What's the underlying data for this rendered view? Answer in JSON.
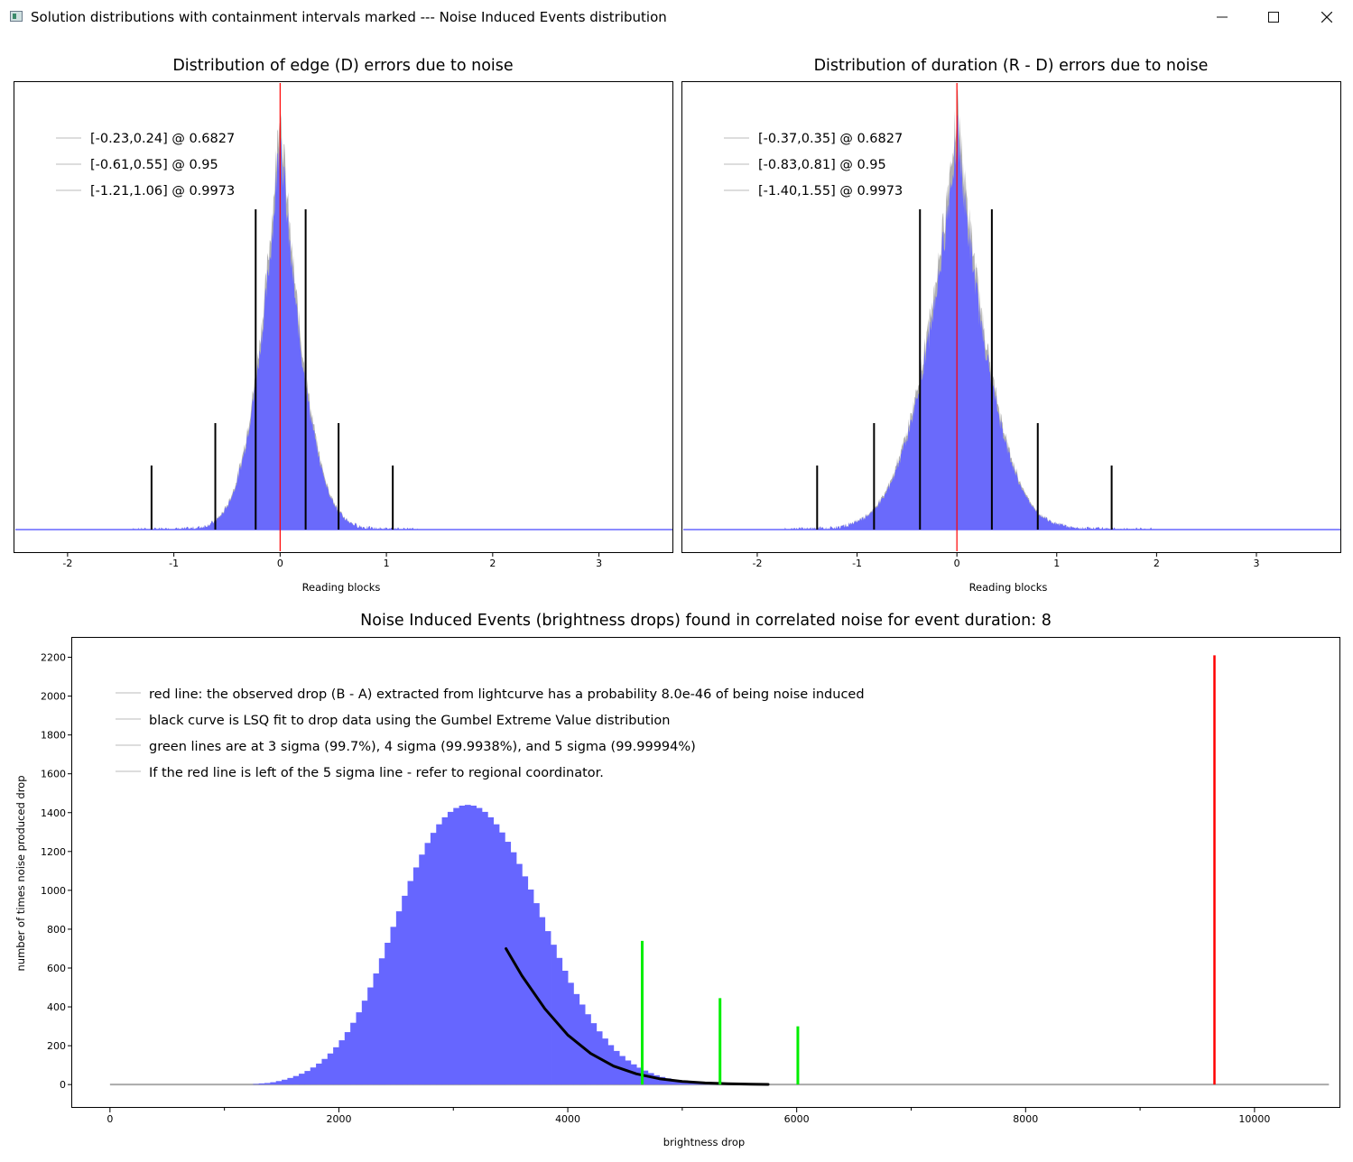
{
  "window": {
    "title": "Solution distributions with containment intervals marked --- Noise Induced Events distribution",
    "icon": "app-window-icon",
    "controls": [
      "minimize-icon",
      "maximize-icon",
      "close-icon"
    ]
  },
  "chart_data": [
    {
      "type": "histogram",
      "title": "Distribution of edge (D) errors due to noise",
      "xlabel": "Reading blocks",
      "ylabel": "",
      "xlim": [
        -2.5,
        3.7
      ],
      "xticks": [
        "-2",
        "-1",
        "0",
        "1",
        "2",
        "3"
      ],
      "bar_color": "#6666ff",
      "center_line": {
        "x": 0,
        "color": "#ff0000"
      },
      "distribution": {
        "center": 0.0,
        "sigma_left": 0.23,
        "sigma_right": 0.24,
        "support": [
          -1.4,
          1.3
        ]
      },
      "interval_lines": [
        {
          "x": -1.21,
          "level": 0.9973
        },
        {
          "x": -0.61,
          "level": 0.95
        },
        {
          "x": -0.23,
          "level": 0.6827
        },
        {
          "x": 0.24,
          "level": 0.6827
        },
        {
          "x": 0.55,
          "level": 0.95
        },
        {
          "x": 1.06,
          "level": 0.9973
        }
      ],
      "legend": [
        "[-0.23,0.24] @ 0.6827",
        "[-0.61,0.55] @ 0.95",
        "[-1.21,1.06] @ 0.9973"
      ],
      "legend_position": "top-left"
    },
    {
      "type": "histogram",
      "title": "Distribution of duration (R - D) errors due to noise",
      "xlabel": "Reading blocks",
      "ylabel": "",
      "xlim": [
        -2.75,
        3.85
      ],
      "xticks": [
        "-2",
        "-1",
        "0",
        "1",
        "2",
        "3"
      ],
      "bar_color": "#6666ff",
      "center_line": {
        "x": 0,
        "color": "#ff0000"
      },
      "distribution": {
        "center": 0.0,
        "sigma_left": 0.37,
        "sigma_right": 0.35,
        "support": [
          -1.75,
          2.0
        ]
      },
      "interval_lines": [
        {
          "x": -1.4,
          "level": 0.9973
        },
        {
          "x": -0.83,
          "level": 0.95
        },
        {
          "x": -0.37,
          "level": 0.6827
        },
        {
          "x": 0.35,
          "level": 0.6827
        },
        {
          "x": 0.81,
          "level": 0.95
        },
        {
          "x": 1.55,
          "level": 0.9973
        }
      ],
      "legend": [
        "[-0.37,0.35] @ 0.6827",
        "[-0.83,0.81] @ 0.95",
        "[-1.40,1.55] @ 0.9973"
      ],
      "legend_position": "top-left"
    },
    {
      "type": "histogram",
      "title": "Noise Induced Events (brightness drops) found in correlated noise for event duration: 8",
      "xlabel": "brightness drop",
      "ylabel": "number of times noise produced drop",
      "xlim": [
        -330,
        10750
      ],
      "ylim": [
        -120,
        2300
      ],
      "xticks": [
        "0",
        "2000",
        "4000",
        "6000",
        "8000",
        "10000"
      ],
      "yticks": [
        "0",
        "200",
        "400",
        "600",
        "800",
        "1000",
        "1200",
        "1400",
        "1600",
        "1800",
        "2000",
        "2200"
      ],
      "bar_color": "#6666ff",
      "bins": {
        "start": 1250,
        "width": 50,
        "counts": [
          3,
          6,
          8,
          12,
          18,
          25,
          34,
          44,
          56,
          70,
          88,
          108,
          132,
          160,
          192,
          228,
          270,
          318,
          372,
          432,
          500,
          572,
          650,
          730,
          812,
          892,
          972,
          1048,
          1118,
          1184,
          1244,
          1296,
          1340,
          1376,
          1404,
          1424,
          1436,
          1440,
          1436,
          1424,
          1404,
          1376,
          1340,
          1298,
          1250,
          1196,
          1136,
          1072,
          1004,
          934,
          862,
          790,
          720,
          652,
          586,
          524,
          466,
          412,
          362,
          316,
          274,
          237,
          203,
          173,
          147,
          124,
          104,
          87,
          72,
          59,
          48,
          39,
          32,
          26,
          21,
          17,
          13,
          10,
          8,
          6,
          5,
          4,
          3,
          2,
          2,
          1,
          1,
          1,
          1
        ]
      },
      "fit_curve": {
        "label": "Gumbel Extreme Value LSQ fit",
        "color": "#000000",
        "x": [
          3460,
          3600,
          3800,
          4000,
          4200,
          4400,
          4600,
          4800,
          5000,
          5200,
          5400,
          5600,
          5750
        ],
        "y": [
          700,
          560,
          390,
          255,
          160,
          95,
          55,
          30,
          16,
          8,
          4,
          2,
          1
        ]
      },
      "observed_drop": {
        "x": 9650,
        "top": 2210,
        "color": "#ff0000"
      },
      "sigma_lines": [
        {
          "sigma": 3,
          "x": 4650,
          "top": 740,
          "color": "#00ee00"
        },
        {
          "sigma": 4,
          "x": 5330,
          "top": 445,
          "color": "#00ee00"
        },
        {
          "sigma": 5,
          "x": 6010,
          "top": 300,
          "color": "#00ee00"
        }
      ],
      "baseline_range": [
        0,
        10650
      ],
      "legend": [
        "red line: the observed drop (B - A) extracted from lightcurve has a probability 8.0e-46 of being noise induced",
        "black curve is LSQ fit to drop data using the Gumbel Extreme Value distribution",
        "green lines are at 3 sigma (99.7%), 4 sigma (99.9938%), and 5 sigma (99.99994%)",
        "If the red line is left of the 5 sigma line - refer to regional coordinator."
      ],
      "legend_position": "top-left"
    }
  ]
}
